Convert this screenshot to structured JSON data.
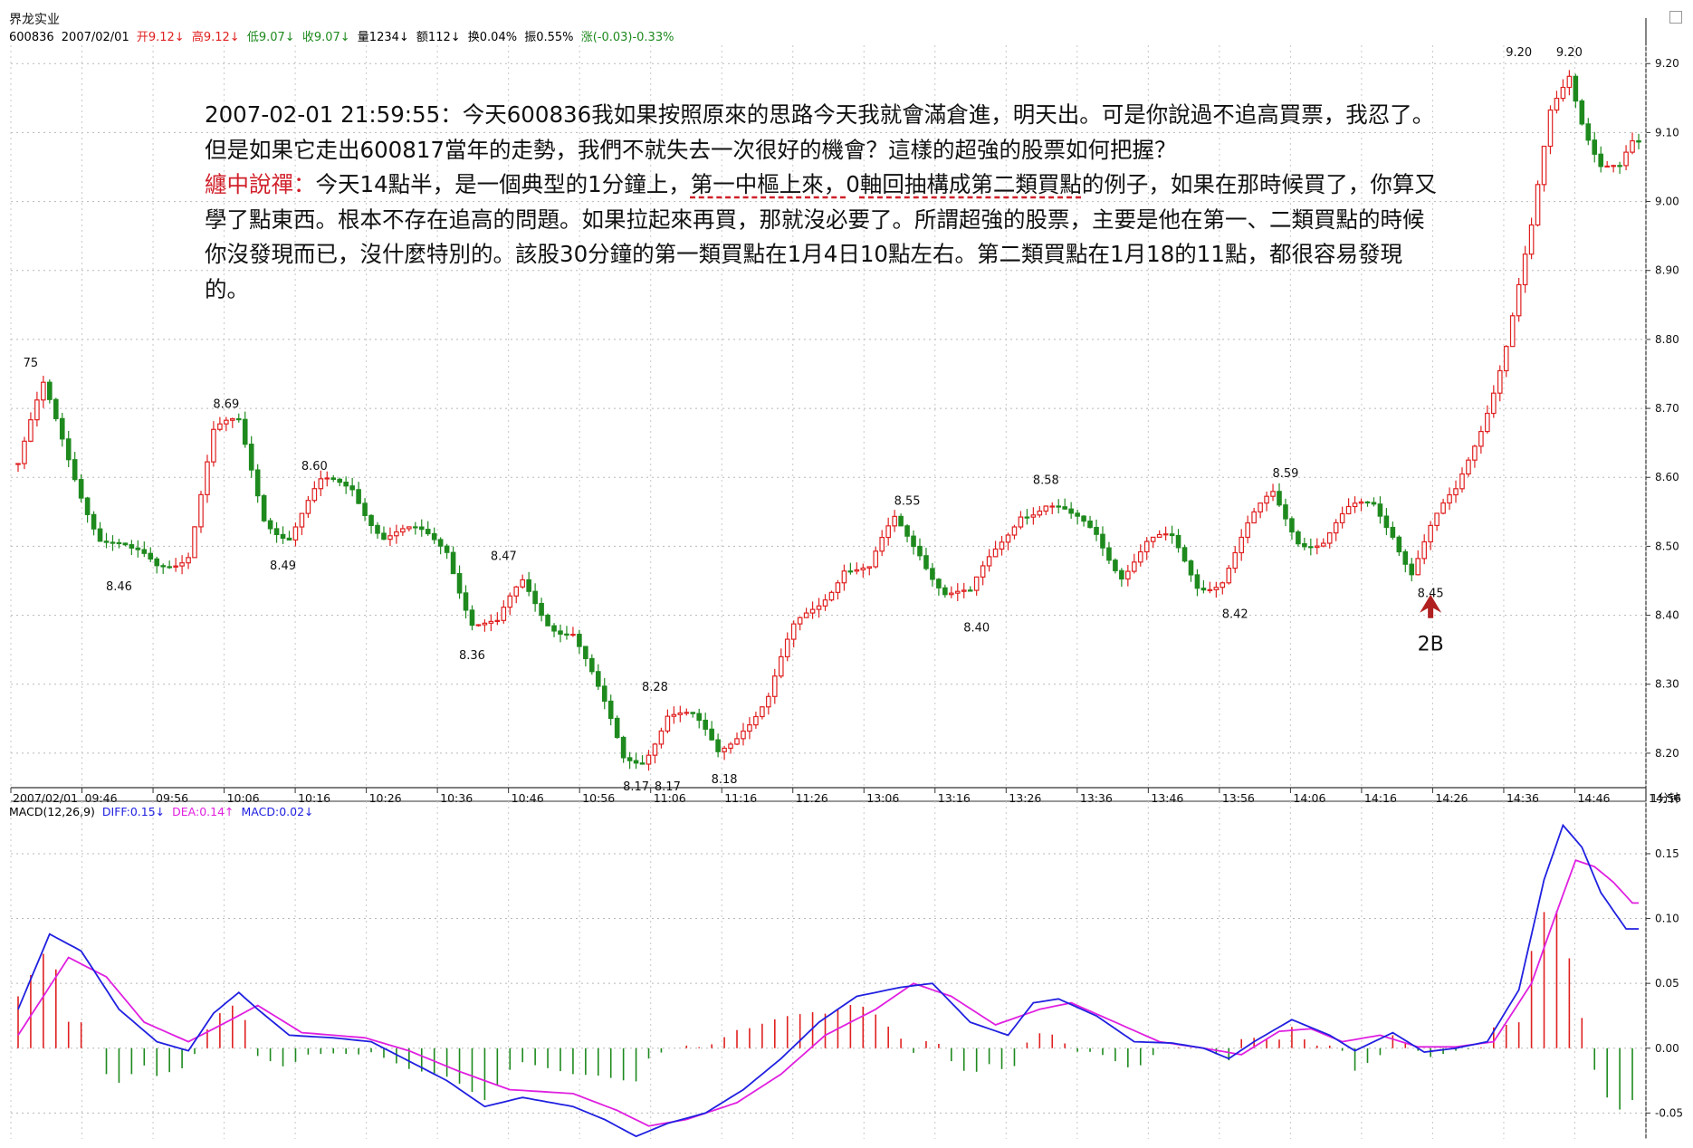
{
  "header": {
    "stock_name": "界龙实业",
    "code": "600836",
    "date": "2007/02/01",
    "open": "开9.12↓",
    "high": "高9.12↓",
    "low": "低9.07↓",
    "close": "收9.07↓",
    "volume": "量1234↓",
    "amount": "额112↓",
    "turnover": "换0.04%",
    "amplitude": "振0.55%",
    "change": "涨(-0.03)-0.33%",
    "colors": {
      "up": "#e02020",
      "down": "#1e8a1e",
      "neutral": "#111111"
    }
  },
  "note": {
    "line1": "2007-02-01 21:59:55：今天600836我如果按照原來的思路今天我就會滿倉進，明天出。可是你說過不追高買票，我忍了。但是如果它走出600817當年的走勢，我們不就失去一次很好的機會？這樣的超強的股票如何把握？",
    "label": "纏中說禪：",
    "text_a": "今天14點半，是一個典型的1分鐘上，",
    "text_ul1": "第一中樞上來，",
    "text_b": "0",
    "text_ul2": "軸回抽構成第二類買點",
    "text_c": "的例子，如果在那時候買了，你算又學了點東西。根本不存在追高的問題。如果拉起來再買，那就沒必要了。所謂超強的股票，主要是他在第一、二類買點的時候你沒發現而已，沒什麼特別的。該股30分鐘的第一類買點在1月4日10點左右。第二類買點在1月18的11點，都很容易發現的。"
  },
  "annotation": {
    "label": "2B",
    "color": "#b02020"
  },
  "macd_header": {
    "name": "MACD(12,26,9)",
    "diff": "DIFF:0.15↓",
    "dea": "DEA:0.14↑",
    "macd": "MACD:0.02↓"
  },
  "chart_data": [
    {
      "type": "candlestick",
      "interval": "1分钟",
      "interval_label": "1分钟",
      "first_date": "2007/02/01",
      "ylim": [
        8.15,
        9.22
      ],
      "yticks": [
        "9.20",
        "9.10",
        "9.00",
        "8.90",
        "8.80",
        "8.70",
        "8.60",
        "8.50",
        "8.40",
        "8.30",
        "8.20"
      ],
      "xticks": [
        "2007/02/01",
        "09:46",
        "09:56",
        "10:06",
        "10:16",
        "10:26",
        "10:36",
        "10:46",
        "10:56",
        "11:06",
        "11:16",
        "11:26",
        "13:06",
        "13:16",
        "13:26",
        "13:36",
        "13:46",
        "13:56",
        "14:06",
        "14:16",
        "14:26",
        "14:36",
        "14:46",
        "14:56"
      ],
      "close_keypoints": [
        [
          0,
          8.62
        ],
        [
          4,
          8.72
        ],
        [
          8,
          8.63
        ],
        [
          13,
          8.52
        ],
        [
          18,
          8.48
        ],
        [
          22,
          8.47
        ],
        [
          27,
          8.5
        ],
        [
          31,
          8.66
        ],
        [
          35,
          8.67
        ],
        [
          39,
          8.55
        ],
        [
          43,
          8.52
        ],
        [
          48,
          8.58
        ],
        [
          53,
          8.59
        ],
        [
          58,
          8.52
        ],
        [
          63,
          8.51
        ],
        [
          68,
          8.5
        ],
        [
          72,
          8.4
        ],
        [
          76,
          8.38
        ],
        [
          80,
          8.44
        ],
        [
          84,
          8.4
        ],
        [
          88,
          8.38
        ],
        [
          92,
          8.28
        ],
        [
          96,
          8.19
        ],
        [
          99,
          8.2
        ],
        [
          103,
          8.26
        ],
        [
          107,
          8.24
        ],
        [
          111,
          8.2
        ],
        [
          115,
          8.25
        ],
        [
          119,
          8.28
        ],
        [
          123,
          8.37
        ],
        [
          127,
          8.42
        ],
        [
          131,
          8.48
        ],
        [
          135,
          8.46
        ],
        [
          139,
          8.53
        ],
        [
          143,
          8.5
        ],
        [
          147,
          8.44
        ],
        [
          151,
          8.42
        ],
        [
          155,
          8.49
        ],
        [
          159,
          8.56
        ],
        [
          163,
          8.56
        ],
        [
          167,
          8.53
        ],
        [
          171,
          8.52
        ],
        [
          175,
          8.47
        ],
        [
          179,
          8.5
        ],
        [
          183,
          8.5
        ],
        [
          187,
          8.45
        ],
        [
          191,
          8.46
        ],
        [
          195,
          8.52
        ],
        [
          199,
          8.57
        ],
        [
          203,
          8.52
        ],
        [
          207,
          8.51
        ],
        [
          211,
          8.54
        ],
        [
          215,
          8.56
        ],
        [
          218,
          8.53
        ],
        [
          221,
          8.47
        ],
        [
          224,
          8.52
        ],
        [
          228,
          8.57
        ],
        [
          232,
          8.68
        ],
        [
          236,
          8.8
        ],
        [
          240,
          8.95
        ],
        [
          243,
          9.12
        ],
        [
          246,
          9.19
        ],
        [
          248,
          9.13
        ],
        [
          251,
          9.06
        ],
        [
          254,
          9.04
        ],
        [
          256,
          9.07
        ]
      ],
      "labels": [
        {
          "i": 2,
          "v": "75",
          "pos": "high"
        },
        {
          "i": 16,
          "v": "8.46",
          "pos": "low"
        },
        {
          "i": 33,
          "v": "8.69",
          "pos": "high"
        },
        {
          "i": 42,
          "v": "8.49",
          "pos": "low"
        },
        {
          "i": 47,
          "v": "8.60",
          "pos": "high"
        },
        {
          "i": 72,
          "v": "8.36",
          "pos": "low"
        },
        {
          "i": 77,
          "v": "8.47",
          "pos": "high"
        },
        {
          "i": 98,
          "v": "8.17",
          "pos": "low"
        },
        {
          "i": 101,
          "v": "8.28",
          "pos": "high"
        },
        {
          "i": 103,
          "v": "8.17",
          "pos": "low"
        },
        {
          "i": 112,
          "v": "8.18",
          "pos": "low"
        },
        {
          "i": 141,
          "v": "8.55",
          "pos": "high"
        },
        {
          "i": 152,
          "v": "8.40",
          "pos": "low"
        },
        {
          "i": 163,
          "v": "8.58",
          "pos": "high"
        },
        {
          "i": 193,
          "v": "8.42",
          "pos": "low"
        },
        {
          "i": 201,
          "v": "8.59",
          "pos": "high"
        },
        {
          "i": 224,
          "v": "8.45",
          "pos": "low"
        },
        {
          "i": 238,
          "v": "9.20",
          "pos": "high"
        },
        {
          "i": 246,
          "v": "9.20",
          "pos": "high"
        }
      ]
    },
    {
      "type": "macd",
      "ylim": [
        -0.07,
        0.18
      ],
      "yticks": [
        "0.15",
        "0.10",
        "0.05",
        "0.00",
        "-0.05"
      ],
      "diff_color": "#2020e0",
      "dea_color": "#e020e0",
      "diff_keypoints": [
        [
          0,
          0.03
        ],
        [
          5,
          0.088
        ],
        [
          10,
          0.075
        ],
        [
          16,
          0.03
        ],
        [
          22,
          0.005
        ],
        [
          27,
          -0.002
        ],
        [
          31,
          0.027
        ],
        [
          35,
          0.043
        ],
        [
          38,
          0.03
        ],
        [
          43,
          0.01
        ],
        [
          50,
          0.008
        ],
        [
          56,
          0.005
        ],
        [
          62,
          -0.01
        ],
        [
          68,
          -0.025
        ],
        [
          74,
          -0.045
        ],
        [
          80,
          -0.038
        ],
        [
          88,
          -0.045
        ],
        [
          93,
          -0.055
        ],
        [
          98,
          -0.068
        ],
        [
          103,
          -0.058
        ],
        [
          109,
          -0.05
        ],
        [
          115,
          -0.032
        ],
        [
          121,
          -0.008
        ],
        [
          127,
          0.02
        ],
        [
          133,
          0.04
        ],
        [
          140,
          0.047
        ],
        [
          145,
          0.05
        ],
        [
          151,
          0.02
        ],
        [
          157,
          0.01
        ],
        [
          161,
          0.035
        ],
        [
          165,
          0.038
        ],
        [
          171,
          0.025
        ],
        [
          177,
          0.005
        ],
        [
          183,
          0.004
        ],
        [
          188,
          0.0
        ],
        [
          192,
          -0.008
        ],
        [
          196,
          0.005
        ],
        [
          202,
          0.022
        ],
        [
          208,
          0.01
        ],
        [
          212,
          -0.002
        ],
        [
          218,
          0.012
        ],
        [
          223,
          -0.003
        ],
        [
          228,
          0.0
        ],
        [
          233,
          0.005
        ],
        [
          238,
          0.045
        ],
        [
          242,
          0.13
        ],
        [
          245,
          0.172
        ],
        [
          248,
          0.155
        ],
        [
          251,
          0.12
        ],
        [
          255,
          0.092
        ]
      ],
      "dea_keypoints": [
        [
          0,
          0.01
        ],
        [
          8,
          0.07
        ],
        [
          14,
          0.055
        ],
        [
          20,
          0.02
        ],
        [
          27,
          0.005
        ],
        [
          33,
          0.02
        ],
        [
          38,
          0.033
        ],
        [
          45,
          0.012
        ],
        [
          55,
          0.008
        ],
        [
          62,
          -0.002
        ],
        [
          70,
          -0.018
        ],
        [
          78,
          -0.032
        ],
        [
          88,
          -0.035
        ],
        [
          95,
          -0.048
        ],
        [
          100,
          -0.06
        ],
        [
          106,
          -0.055
        ],
        [
          114,
          -0.042
        ],
        [
          121,
          -0.02
        ],
        [
          128,
          0.01
        ],
        [
          136,
          0.03
        ],
        [
          142,
          0.05
        ],
        [
          148,
          0.04
        ],
        [
          155,
          0.018
        ],
        [
          162,
          0.03
        ],
        [
          167,
          0.035
        ],
        [
          174,
          0.02
        ],
        [
          181,
          0.005
        ],
        [
          188,
          0.0
        ],
        [
          194,
          -0.005
        ],
        [
          200,
          0.013
        ],
        [
          205,
          0.015
        ],
        [
          210,
          0.005
        ],
        [
          216,
          0.01
        ],
        [
          222,
          0.001
        ],
        [
          228,
          0.001
        ],
        [
          234,
          0.005
        ],
        [
          240,
          0.05
        ],
        [
          244,
          0.105
        ],
        [
          247,
          0.145
        ],
        [
          250,
          0.14
        ],
        [
          253,
          0.128
        ],
        [
          256,
          0.112
        ]
      ]
    }
  ]
}
